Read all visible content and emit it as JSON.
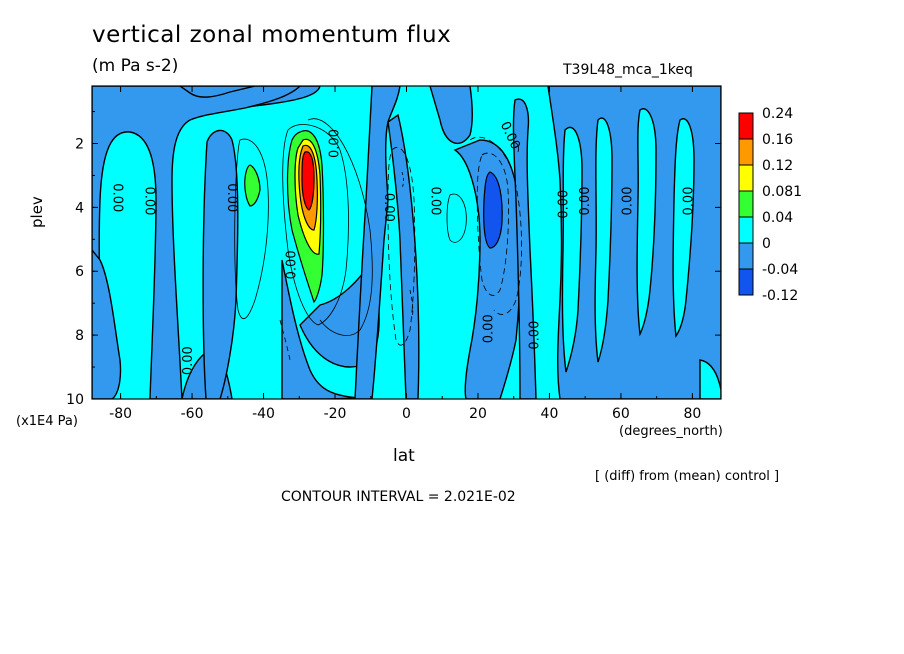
{
  "chart_data": {
    "type": "contour",
    "title": "vertical zonal momentum flux",
    "subtitle": "(m Pa s-2)",
    "run_label": "T39L48_mca_1keq",
    "xlabel": "lat",
    "x_units": "(degrees_north)",
    "ylabel": "plev",
    "y_units": "(x1E4 Pa)",
    "xlim": [
      -88,
      88
    ],
    "ylim": [
      10,
      0.2
    ],
    "x_ticks": [
      "-80",
      "-60",
      "-40",
      "-20",
      "0",
      "20",
      "40",
      "60",
      "80"
    ],
    "x_tick_values": [
      -80,
      -60,
      -40,
      -20,
      0,
      20,
      40,
      60,
      80
    ],
    "y_ticks": [
      "2",
      "4",
      "6",
      "8",
      "10"
    ],
    "y_tick_values": [
      2,
      4,
      6,
      8,
      10
    ],
    "colorbar": {
      "labels": [
        "0.24",
        "0.16",
        "0.12",
        "0.081",
        "0.04",
        "0",
        "-0.04",
        "-0.12"
      ],
      "colors": [
        "#ff0000",
        "#ff9900",
        "#ffff00",
        "#33ff33",
        "#00ffff",
        "#3399ee",
        "#1155ee"
      ]
    },
    "contour_labels": [
      "0.00",
      "0.00",
      "0.00",
      "0.00",
      "0.00",
      "0.00",
      "0.00",
      "0.00",
      "0.00",
      "0.00",
      "0.00",
      "0.00",
      "0.00",
      "0.00",
      "0.00"
    ],
    "features": [
      {
        "lat": -28,
        "plev": 3.5,
        "value": 0.24,
        "kind": "maximum"
      },
      {
        "lat": -44,
        "plev": 3.2,
        "value": 0.06,
        "kind": "local maximum"
      },
      {
        "lat": 24,
        "plev": 4.2,
        "value": -0.12,
        "kind": "minimum"
      }
    ],
    "contour_interval_label": "CONTOUR INTERVAL = 2.021E-02",
    "diff_note": "[ (diff) from (mean) control ]"
  }
}
